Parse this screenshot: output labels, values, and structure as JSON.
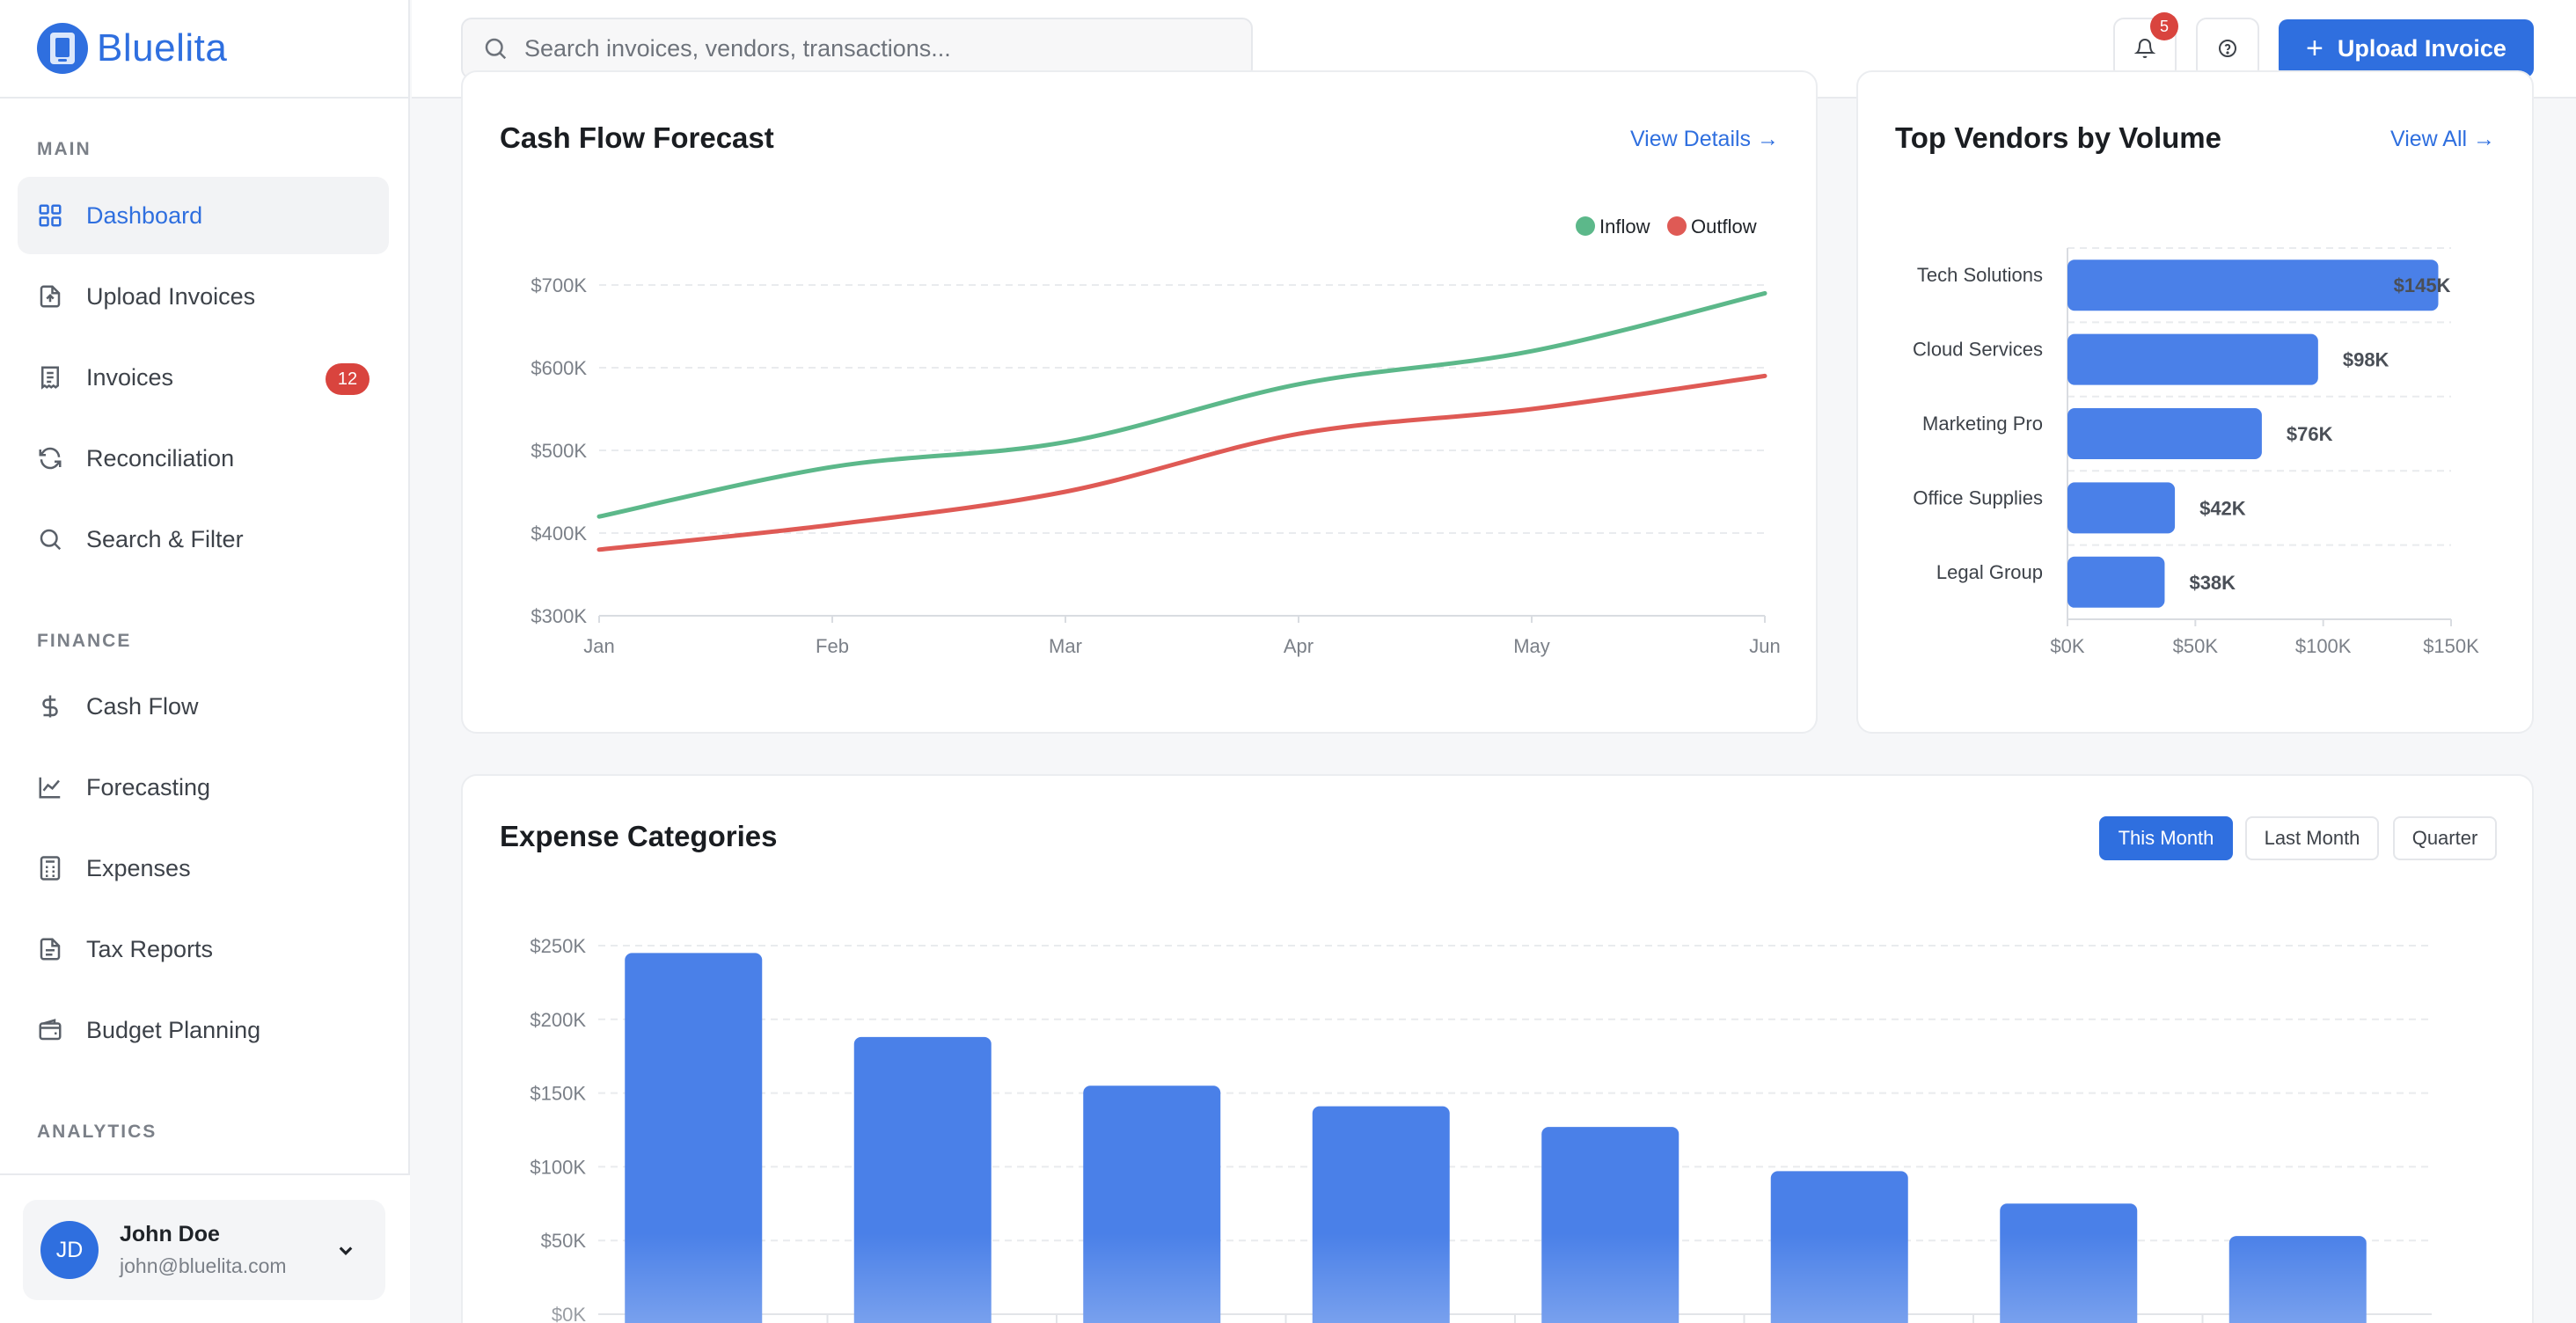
{
  "app": {
    "name": "Bluelita"
  },
  "sidebar": {
    "sections": {
      "main": "MAIN",
      "finance": "FINANCE",
      "analytics": "ANALYTICS"
    },
    "items": [
      {
        "label": "Dashboard",
        "icon": "grid-icon",
        "active": true
      },
      {
        "label": "Upload Invoices",
        "icon": "file-upload-icon"
      },
      {
        "label": "Invoices",
        "icon": "receipt-icon",
        "badge": "12"
      },
      {
        "label": "Reconciliation",
        "icon": "refresh-icon"
      },
      {
        "label": "Search & Filter",
        "icon": "search-icon"
      },
      {
        "label": "Cash Flow",
        "icon": "dollar-icon"
      },
      {
        "label": "Forecasting",
        "icon": "trend-icon"
      },
      {
        "label": "Expenses",
        "icon": "calculator-icon"
      },
      {
        "label": "Tax Reports",
        "icon": "document-icon"
      },
      {
        "label": "Budget Planning",
        "icon": "wallet-icon"
      }
    ],
    "user": {
      "initials": "JD",
      "name": "John Doe",
      "email": "john@bluelita.com"
    }
  },
  "header": {
    "search_placeholder": "Search invoices, vendors, transactions...",
    "notifications_count": "5",
    "upload_label": "Upload Invoice"
  },
  "colors": {
    "accent": "#2f6fdf",
    "inflow": "#5cb88a",
    "outflow": "#df5a55",
    "bar": "#4a80e8",
    "badge": "#d9443e"
  },
  "cash_flow": {
    "title": "Cash Flow Forecast",
    "link": "View Details →",
    "legend": {
      "inflow": "Inflow",
      "outflow": "Outflow"
    }
  },
  "vendors": {
    "title": "Top Vendors by Volume",
    "link": "View All →"
  },
  "expenses": {
    "title": "Expense Categories",
    "filters": [
      "This Month",
      "Last Month",
      "Quarter"
    ]
  },
  "chart_data": [
    {
      "id": "cashflow",
      "type": "line",
      "title": "Cash Flow Forecast",
      "x": [
        "Jan",
        "Feb",
        "Mar",
        "Apr",
        "May",
        "Jun"
      ],
      "series": [
        {
          "name": "Inflow",
          "values": [
            420,
            480,
            510,
            580,
            620,
            690
          ]
        },
        {
          "name": "Outflow",
          "values": [
            380,
            410,
            450,
            520,
            550,
            590
          ]
        }
      ],
      "ylim": [
        300,
        700
      ],
      "yticks": [
        "$300K",
        "$400K",
        "$500K",
        "$600K",
        "$700K"
      ],
      "grid": true,
      "legend": "top-right"
    },
    {
      "id": "vendors",
      "type": "bar",
      "orientation": "horizontal",
      "title": "Top Vendors by Volume",
      "categories": [
        "Tech Solutions",
        "Cloud Services",
        "Marketing Pro",
        "Office Supplies",
        "Legal Group"
      ],
      "values": [
        145,
        98,
        76,
        42,
        38
      ],
      "labels": [
        "$145K",
        "$98K",
        "$76K",
        "$42K",
        "$38K"
      ],
      "xlim": [
        0,
        150
      ],
      "xticks": [
        "$0K",
        "$50K",
        "$100K",
        "$150K"
      ],
      "grid": true
    },
    {
      "id": "expenses",
      "type": "bar",
      "title": "Expense Categories",
      "values": [
        245,
        188,
        155,
        141,
        127,
        97,
        75,
        53
      ],
      "ylim": [
        0,
        250
      ],
      "yticks": [
        "$0K",
        "$50K",
        "$100K",
        "$150K",
        "$200K",
        "$250K"
      ],
      "grid": true
    }
  ]
}
